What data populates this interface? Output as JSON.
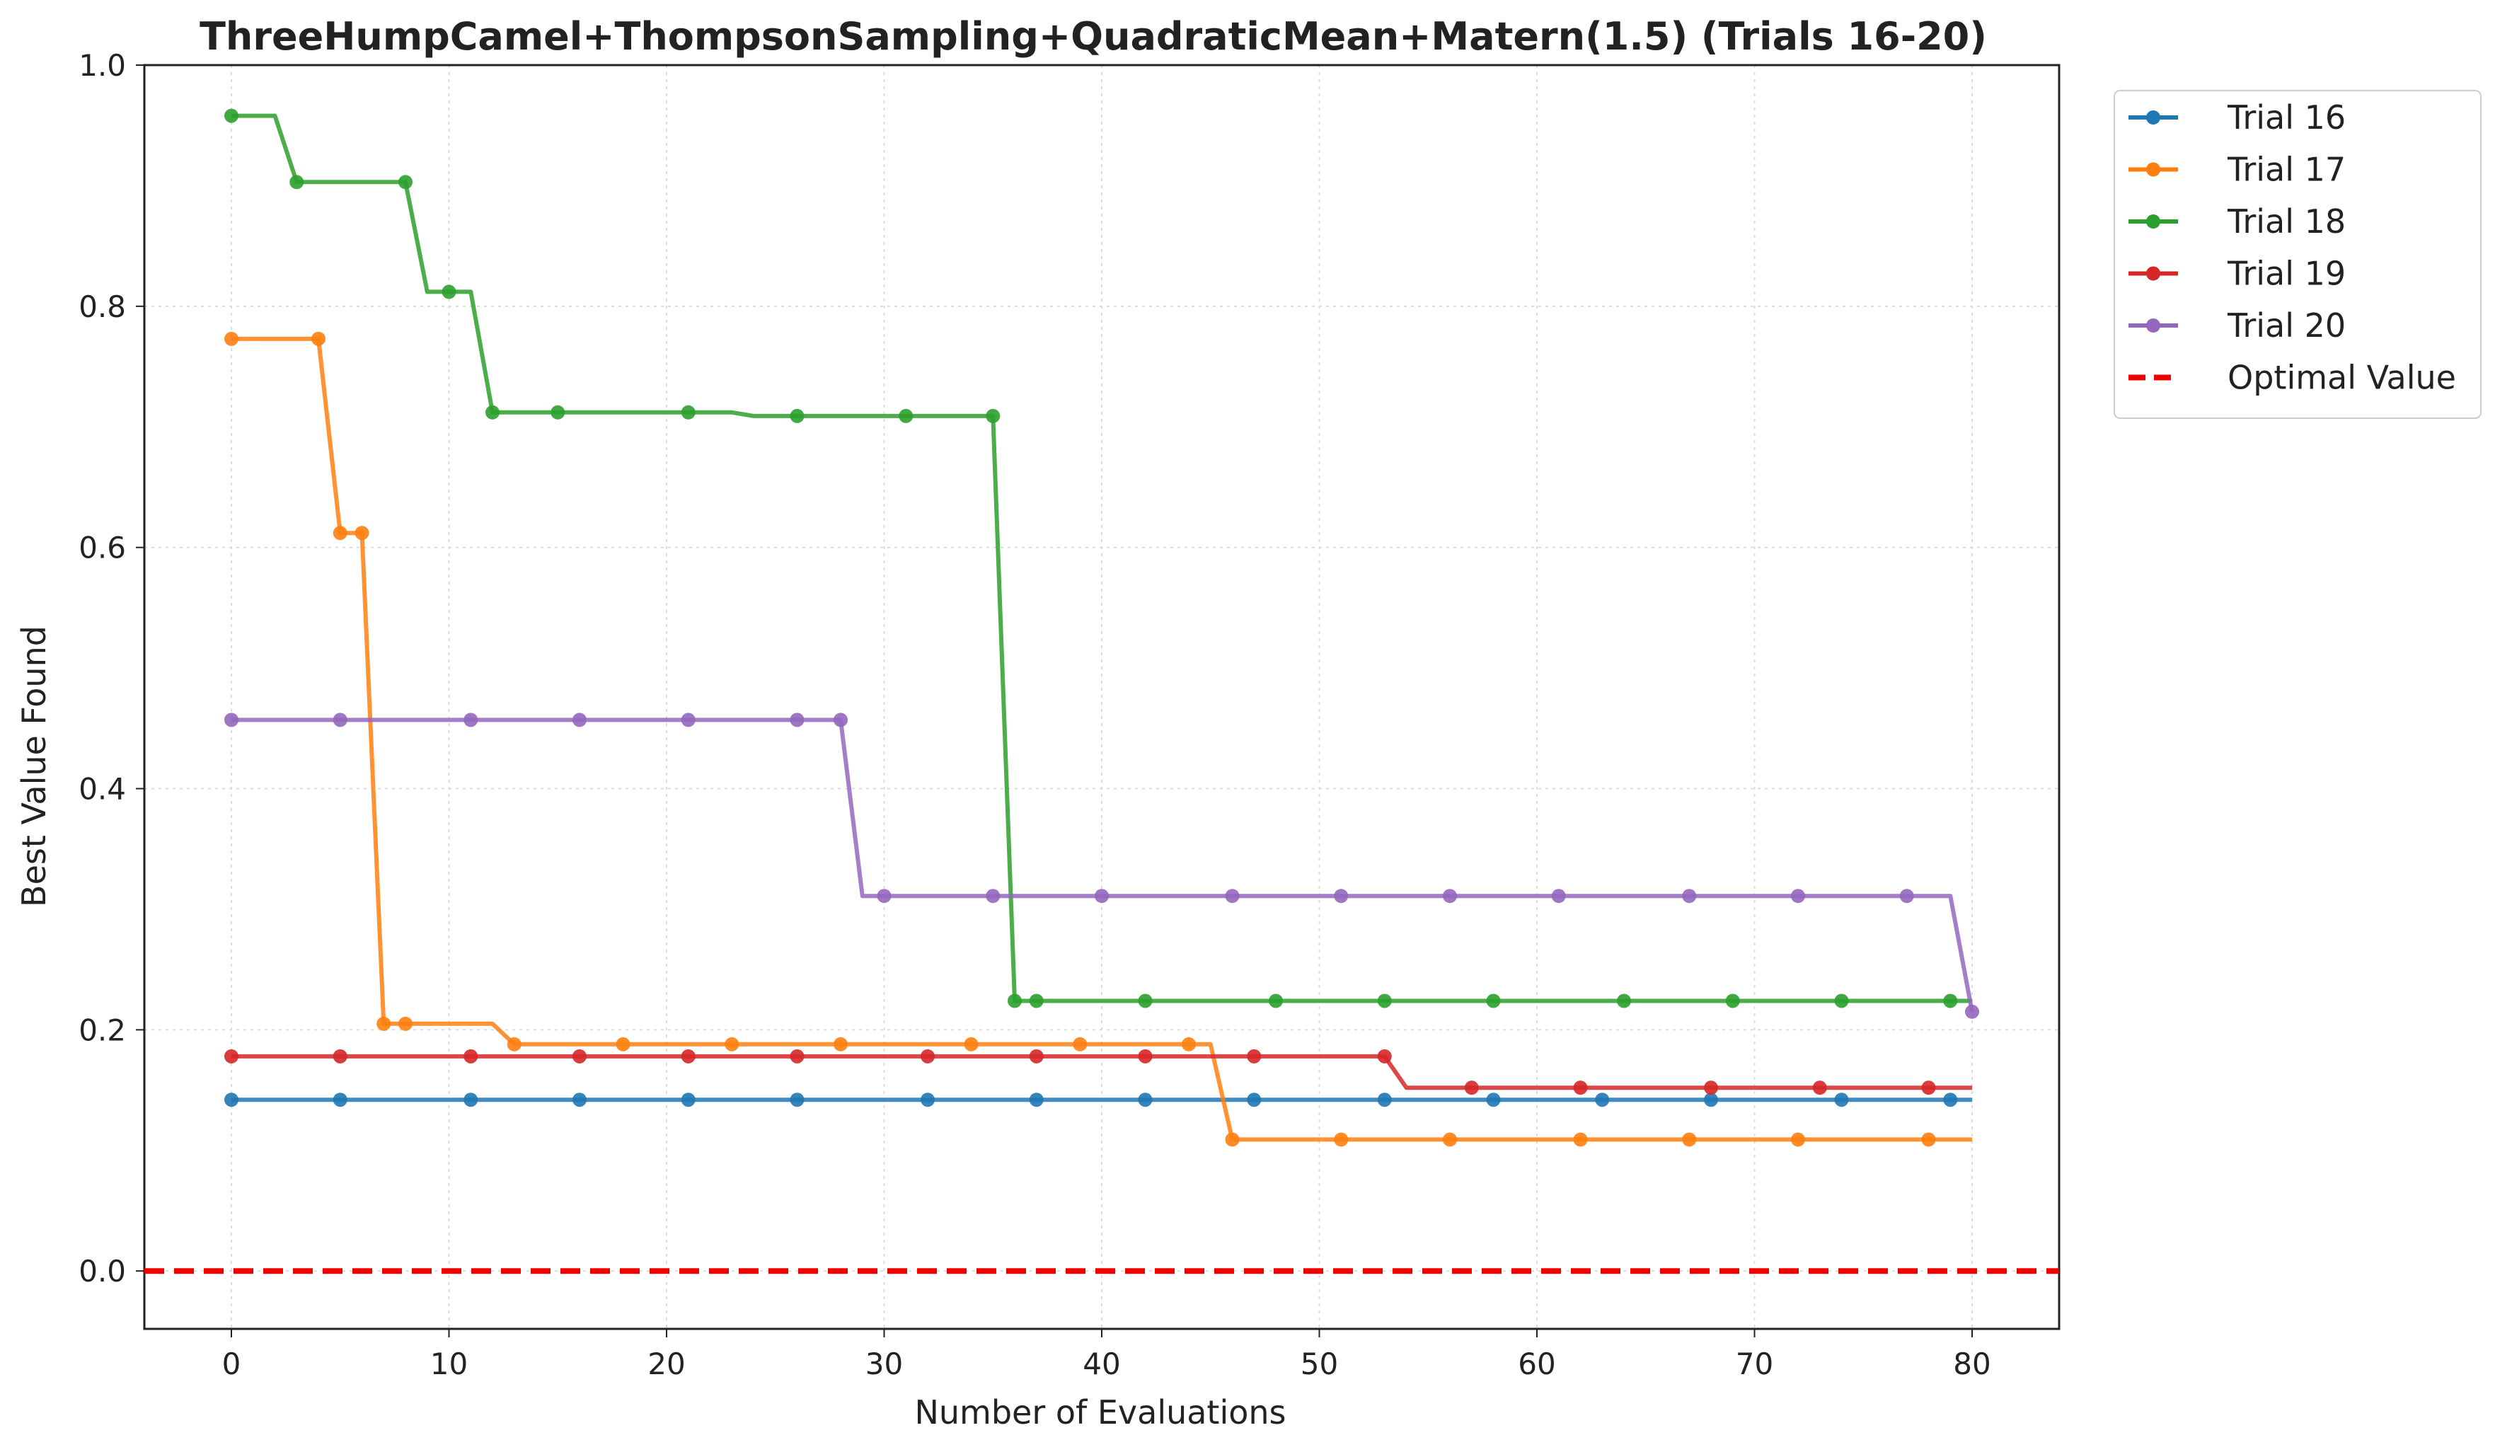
{
  "chart_data": {
    "type": "line",
    "title": "ThreeHumpCamel+ThompsonSampling+QuadraticMean+Matern(1.5) (Trials 16-20)",
    "xlabel": "Number of Evaluations",
    "ylabel": "Best Value Found",
    "xlim": [
      -4,
      84
    ],
    "ylim": [
      -0.048,
      1.0
    ],
    "xticks": [
      0,
      10,
      20,
      30,
      40,
      50,
      60,
      70,
      80
    ],
    "yticks": [
      0.0,
      0.2,
      0.4,
      0.6,
      0.8,
      1.0
    ],
    "xtick_labels": [
      "0",
      "10",
      "20",
      "30",
      "40",
      "50",
      "60",
      "70",
      "80"
    ],
    "ytick_labels": [
      "0.0",
      "0.2",
      "0.4",
      "0.6",
      "0.8",
      "1.0"
    ],
    "grid": true,
    "legend_position": "outside-top-right",
    "series": [
      {
        "name": "Trial 16",
        "color": "#1f77b4",
        "steps": [
          [
            0,
            0.142
          ],
          [
            80,
            0.142
          ]
        ],
        "markers": [
          0,
          5,
          11,
          16,
          21,
          26,
          32,
          37,
          42,
          47,
          53,
          58,
          63,
          68,
          74,
          79
        ]
      },
      {
        "name": "Trial 17",
        "color": "#ff7f0e",
        "steps": [
          [
            0,
            0.773
          ],
          [
            4,
            0.773
          ],
          [
            5,
            0.612
          ],
          [
            6,
            0.612
          ],
          [
            7,
            0.205
          ],
          [
            8,
            0.205
          ],
          [
            12,
            0.205
          ],
          [
            13,
            0.188
          ],
          [
            45,
            0.188
          ],
          [
            46,
            0.109
          ],
          [
            80,
            0.109
          ]
        ],
        "markers": [
          0,
          4,
          5,
          6,
          7,
          8,
          13,
          18,
          23,
          28,
          34,
          39,
          44,
          46,
          51,
          56,
          62,
          67,
          72,
          78
        ]
      },
      {
        "name": "Trial 18",
        "color": "#2ca02c",
        "steps": [
          [
            0,
            0.958
          ],
          [
            2,
            0.958
          ],
          [
            3,
            0.903
          ],
          [
            8,
            0.903
          ],
          [
            9,
            0.812
          ],
          [
            11,
            0.812
          ],
          [
            12,
            0.712
          ],
          [
            23,
            0.712
          ],
          [
            24,
            0.709
          ],
          [
            35,
            0.709
          ],
          [
            36,
            0.224
          ],
          [
            80,
            0.224
          ]
        ],
        "markers": [
          0,
          3,
          8,
          10,
          12,
          15,
          21,
          26,
          31,
          35,
          36,
          37,
          42,
          48,
          53,
          58,
          64,
          69,
          74,
          79
        ]
      },
      {
        "name": "Trial 19",
        "color": "#d62728",
        "steps": [
          [
            0,
            0.178
          ],
          [
            53,
            0.178
          ],
          [
            54,
            0.152
          ],
          [
            80,
            0.152
          ]
        ],
        "markers": [
          0,
          5,
          11,
          16,
          21,
          26,
          32,
          37,
          42,
          47,
          53,
          57,
          62,
          68,
          73,
          78
        ]
      },
      {
        "name": "Trial 20",
        "color": "#9467bd",
        "steps": [
          [
            0,
            0.457
          ],
          [
            28,
            0.457
          ],
          [
            29,
            0.311
          ],
          [
            79,
            0.311
          ],
          [
            80,
            0.215
          ]
        ],
        "markers": [
          0,
          5,
          11,
          16,
          21,
          26,
          28,
          30,
          35,
          40,
          46,
          51,
          56,
          61,
          67,
          72,
          77,
          80
        ]
      }
    ],
    "reference_line": {
      "name": "Optimal Value",
      "y": 0.0,
      "color": "#ee0000",
      "style": "dashed"
    }
  }
}
